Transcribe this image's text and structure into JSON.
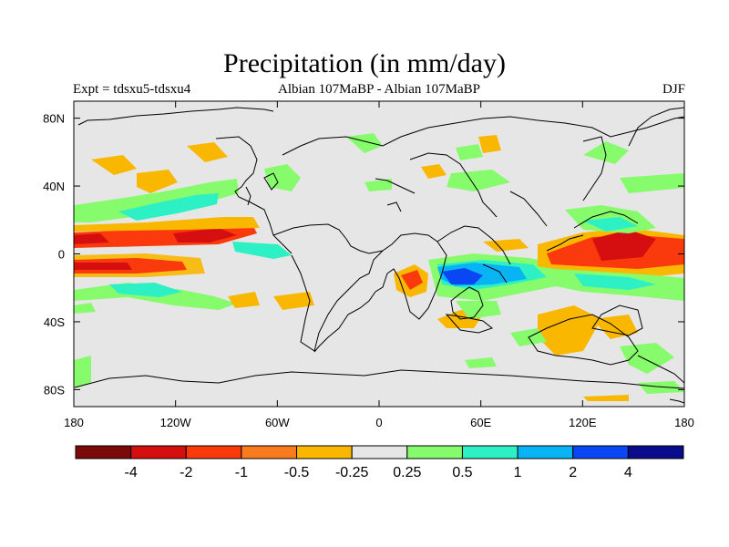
{
  "title": "Precipitation (in mm/day)",
  "labels": {
    "left": "Expt = tdsxu5-tdsxu4",
    "center": "Albian   107MaBP - Albian   107MaBP",
    "right": "DJF"
  },
  "axes": {
    "x_ticks": [
      "180",
      "120W",
      "60W",
      "0",
      "60E",
      "120E",
      "180"
    ],
    "y_ticks": [
      "80N",
      "40N",
      "0",
      "40S",
      "80S"
    ]
  },
  "colorbar": {
    "colors": [
      "#7a0a0a",
      "#d50f0f",
      "#fa3a0c",
      "#fa7a1e",
      "#fab700",
      "#e6e6e6",
      "#86fb6c",
      "#2df0c4",
      "#08b4f4",
      "#0a46f4",
      "#0a0a8c"
    ],
    "labels": [
      "-4",
      "-2",
      "-1",
      "-0.5",
      "-0.25",
      "0.25",
      "0.5",
      "1",
      "2",
      "4"
    ]
  },
  "colors": {
    "background": "#e6e6e6",
    "coast": "#000000"
  }
}
